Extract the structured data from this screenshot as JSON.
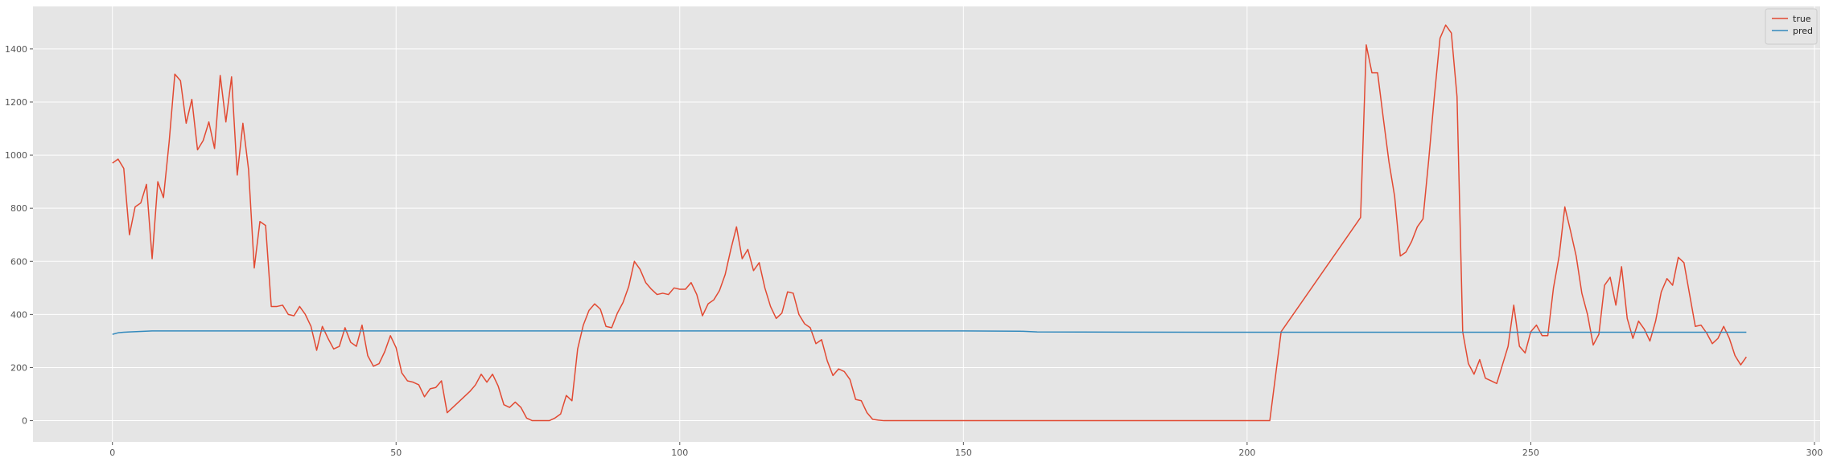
{
  "chart_data": {
    "type": "line",
    "title": "",
    "xlabel": "",
    "ylabel": "",
    "xlim": [
      -14,
      301
    ],
    "ylim": [
      -80,
      1560
    ],
    "grid": true,
    "legend_placement": "top-right",
    "x_ticks": [
      0,
      50,
      100,
      150,
      200,
      250,
      300
    ],
    "y_ticks": [
      0,
      200,
      400,
      600,
      800,
      1000,
      1200,
      1400
    ],
    "series": [
      {
        "name": "true",
        "color": "#e24a33",
        "points": [
          [
            0,
            970
          ],
          [
            1,
            985
          ],
          [
            2,
            950
          ],
          [
            3,
            700
          ],
          [
            4,
            805
          ],
          [
            5,
            820
          ],
          [
            6,
            890
          ],
          [
            7,
            610
          ],
          [
            8,
            900
          ],
          [
            9,
            840
          ],
          [
            10,
            1050
          ],
          [
            11,
            1305
          ],
          [
            12,
            1280
          ],
          [
            13,
            1120
          ],
          [
            14,
            1210
          ],
          [
            15,
            1020
          ],
          [
            16,
            1055
          ],
          [
            17,
            1125
          ],
          [
            18,
            1025
          ],
          [
            19,
            1300
          ],
          [
            20,
            1125
          ],
          [
            21,
            1295
          ],
          [
            22,
            925
          ],
          [
            23,
            1120
          ],
          [
            24,
            945
          ],
          [
            25,
            575
          ],
          [
            26,
            750
          ],
          [
            27,
            735
          ],
          [
            28,
            430
          ],
          [
            29,
            430
          ],
          [
            30,
            435
          ],
          [
            31,
            400
          ],
          [
            32,
            395
          ],
          [
            33,
            430
          ],
          [
            34,
            400
          ],
          [
            35,
            355
          ],
          [
            36,
            265
          ],
          [
            37,
            355
          ],
          [
            38,
            310
          ],
          [
            39,
            270
          ],
          [
            40,
            280
          ],
          [
            41,
            350
          ],
          [
            42,
            295
          ],
          [
            43,
            280
          ],
          [
            44,
            360
          ],
          [
            45,
            245
          ],
          [
            46,
            205
          ],
          [
            47,
            215
          ],
          [
            48,
            260
          ],
          [
            49,
            320
          ],
          [
            50,
            275
          ],
          [
            51,
            180
          ],
          [
            52,
            150
          ],
          [
            53,
            145
          ],
          [
            54,
            135
          ],
          [
            55,
            90
          ],
          [
            56,
            120
          ],
          [
            57,
            125
          ],
          [
            58,
            150
          ],
          [
            59,
            30
          ],
          [
            60,
            50
          ],
          [
            61,
            70
          ],
          [
            62,
            90
          ],
          [
            63,
            110
          ],
          [
            64,
            135
          ],
          [
            65,
            175
          ],
          [
            66,
            145
          ],
          [
            67,
            175
          ],
          [
            68,
            130
          ],
          [
            69,
            60
          ],
          [
            70,
            50
          ],
          [
            71,
            70
          ],
          [
            72,
            50
          ],
          [
            73,
            10
          ],
          [
            74,
            0
          ],
          [
            75,
            0
          ],
          [
            76,
            0
          ],
          [
            77,
            0
          ],
          [
            78,
            10
          ],
          [
            79,
            25
          ],
          [
            80,
            95
          ],
          [
            81,
            75
          ],
          [
            82,
            270
          ],
          [
            83,
            360
          ],
          [
            84,
            415
          ],
          [
            85,
            440
          ],
          [
            86,
            420
          ],
          [
            87,
            355
          ],
          [
            88,
            350
          ],
          [
            89,
            405
          ],
          [
            90,
            445
          ],
          [
            91,
            505
          ],
          [
            92,
            600
          ],
          [
            93,
            570
          ],
          [
            94,
            520
          ],
          [
            95,
            495
          ],
          [
            96,
            475
          ],
          [
            97,
            480
          ],
          [
            98,
            475
          ],
          [
            99,
            500
          ],
          [
            100,
            495
          ],
          [
            101,
            495
          ],
          [
            102,
            520
          ],
          [
            103,
            475
          ],
          [
            104,
            395
          ],
          [
            105,
            440
          ],
          [
            106,
            455
          ],
          [
            107,
            490
          ],
          [
            108,
            550
          ],
          [
            109,
            645
          ],
          [
            110,
            730
          ],
          [
            111,
            610
          ],
          [
            112,
            645
          ],
          [
            113,
            565
          ],
          [
            114,
            595
          ],
          [
            115,
            500
          ],
          [
            116,
            430
          ],
          [
            117,
            385
          ],
          [
            118,
            405
          ],
          [
            119,
            485
          ],
          [
            120,
            480
          ],
          [
            121,
            400
          ],
          [
            122,
            365
          ],
          [
            123,
            350
          ],
          [
            124,
            290
          ],
          [
            125,
            305
          ],
          [
            126,
            225
          ],
          [
            127,
            170
          ],
          [
            128,
            195
          ],
          [
            129,
            185
          ],
          [
            130,
            155
          ],
          [
            131,
            80
          ],
          [
            132,
            75
          ],
          [
            133,
            30
          ],
          [
            134,
            5
          ],
          [
            135,
            2
          ],
          [
            136,
            0
          ],
          [
            150,
            0
          ],
          [
            180,
            0
          ],
          [
            204,
            0
          ],
          [
            206,
            335
          ],
          [
            220,
            765
          ],
          [
            221,
            1415
          ],
          [
            222,
            1310
          ],
          [
            223,
            1310
          ],
          [
            224,
            1140
          ],
          [
            225,
            975
          ],
          [
            226,
            845
          ],
          [
            227,
            620
          ],
          [
            228,
            635
          ],
          [
            229,
            675
          ],
          [
            230,
            730
          ],
          [
            231,
            760
          ],
          [
            232,
            980
          ],
          [
            233,
            1220
          ],
          [
            234,
            1440
          ],
          [
            235,
            1490
          ],
          [
            236,
            1460
          ],
          [
            237,
            1220
          ],
          [
            238,
            335
          ],
          [
            239,
            215
          ],
          [
            240,
            175
          ],
          [
            241,
            230
          ],
          [
            242,
            160
          ],
          [
            243,
            150
          ],
          [
            244,
            140
          ],
          [
            245,
            210
          ],
          [
            246,
            280
          ],
          [
            247,
            435
          ],
          [
            248,
            280
          ],
          [
            249,
            255
          ],
          [
            250,
            335
          ],
          [
            251,
            360
          ],
          [
            252,
            320
          ],
          [
            253,
            320
          ],
          [
            254,
            500
          ],
          [
            255,
            620
          ],
          [
            256,
            805
          ],
          [
            257,
            715
          ],
          [
            258,
            620
          ],
          [
            259,
            480
          ],
          [
            260,
            400
          ],
          [
            261,
            285
          ],
          [
            262,
            325
          ],
          [
            263,
            510
          ],
          [
            264,
            540
          ],
          [
            265,
            435
          ],
          [
            266,
            580
          ],
          [
            267,
            385
          ],
          [
            268,
            310
          ],
          [
            269,
            375
          ],
          [
            270,
            345
          ],
          [
            271,
            300
          ],
          [
            272,
            375
          ],
          [
            273,
            485
          ],
          [
            274,
            535
          ],
          [
            275,
            510
          ],
          [
            276,
            615
          ],
          [
            277,
            595
          ],
          [
            278,
            475
          ],
          [
            279,
            355
          ],
          [
            280,
            360
          ],
          [
            281,
            330
          ],
          [
            282,
            290
          ],
          [
            283,
            310
          ],
          [
            284,
            355
          ],
          [
            285,
            310
          ],
          [
            286,
            245
          ],
          [
            287,
            210
          ],
          [
            288,
            240
          ]
        ]
      },
      {
        "name": "pred",
        "color": "#348abd",
        "points": [
          [
            0,
            325
          ],
          [
            1,
            331
          ],
          [
            2,
            333
          ],
          [
            3,
            334
          ],
          [
            5,
            336
          ],
          [
            7,
            338
          ],
          [
            10,
            338
          ],
          [
            50,
            338
          ],
          [
            100,
            338
          ],
          [
            150,
            338
          ],
          [
            160,
            337
          ],
          [
            163,
            334
          ],
          [
            200,
            333
          ],
          [
            250,
            333
          ],
          [
            288,
            333
          ]
        ]
      }
    ]
  }
}
